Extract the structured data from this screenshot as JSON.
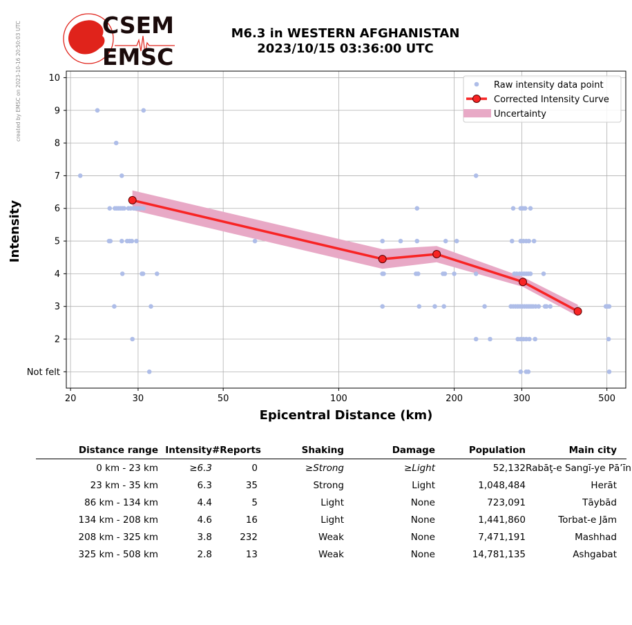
{
  "credit": "created by EMSC on 2023-10-16 20:50:03 UTC",
  "logo": {
    "line1": "CSEM",
    "line2": "EMSC",
    "color": "#e0231b"
  },
  "title": {
    "line1": "M6.3 in WESTERN AFGHANISTAN",
    "line2": "2023/10/15 03:36:00 UTC"
  },
  "chart_data": {
    "type": "scatter",
    "xlabel": "Epicentral Distance (km)",
    "ylabel": "Intensity",
    "xscale": "log",
    "xlim": [
      19.5,
      560
    ],
    "ylim": [
      0.5,
      10.2
    ],
    "xticks": [
      20,
      30,
      50,
      100,
      200,
      300,
      500
    ],
    "yticks": [
      1,
      2,
      3,
      4,
      5,
      6,
      7,
      8,
      9,
      10
    ],
    "ytick_labels": [
      "Not felt",
      "2",
      "3",
      "4",
      "5",
      "6",
      "7",
      "8",
      "9",
      "10"
    ],
    "grid": true,
    "legend_position": "top-right",
    "legend": [
      "Raw intensity data point",
      "Corrected Intensity Curve",
      "Uncertainty"
    ],
    "colors": {
      "raw": "#aebde8",
      "curve": "#f82424",
      "band": "#e8a9c6",
      "marker_edge": "#5a0000"
    },
    "corrected_curve": {
      "x": [
        29,
        130,
        180,
        302,
        420
      ],
      "y": [
        6.25,
        4.45,
        4.6,
        3.75,
        2.85
      ],
      "upper": [
        6.55,
        4.75,
        4.85,
        3.9,
        3.05
      ],
      "lower": [
        5.95,
        4.15,
        4.35,
        3.6,
        2.7
      ]
    },
    "raw_points": [
      [
        21.2,
        7
      ],
      [
        23.5,
        9
      ],
      [
        26.3,
        8
      ],
      [
        27.2,
        7
      ],
      [
        31,
        9
      ],
      [
        25.3,
        6
      ],
      [
        26.1,
        6
      ],
      [
        26.4,
        6
      ],
      [
        26.7,
        6
      ],
      [
        27,
        6
      ],
      [
        27.3,
        6
      ],
      [
        27.6,
        6
      ],
      [
        28.3,
        6
      ],
      [
        28.7,
        6
      ],
      [
        29.2,
        6
      ],
      [
        29.6,
        6
      ],
      [
        30,
        6
      ],
      [
        30.4,
        6
      ],
      [
        31,
        6
      ],
      [
        25.2,
        5
      ],
      [
        25.4,
        5
      ],
      [
        27.2,
        5
      ],
      [
        28.1,
        5
      ],
      [
        28.5,
        5
      ],
      [
        28.9,
        5
      ],
      [
        29.7,
        5
      ],
      [
        27.3,
        4
      ],
      [
        30.7,
        4
      ],
      [
        30.9,
        4
      ],
      [
        33.6,
        4
      ],
      [
        26,
        3
      ],
      [
        32.4,
        3
      ],
      [
        29,
        2
      ],
      [
        32.1,
        1
      ],
      [
        60.5,
        5
      ],
      [
        130,
        5
      ],
      [
        145,
        5
      ],
      [
        160,
        5
      ],
      [
        190,
        5
      ],
      [
        203,
        5
      ],
      [
        130,
        4
      ],
      [
        131,
        4
      ],
      [
        159,
        4
      ],
      [
        161,
        4
      ],
      [
        187,
        4
      ],
      [
        189,
        4
      ],
      [
        200,
        4
      ],
      [
        130,
        3
      ],
      [
        162,
        3
      ],
      [
        178,
        3
      ],
      [
        188,
        3
      ],
      [
        160,
        6
      ],
      [
        228,
        7
      ],
      [
        228,
        4
      ],
      [
        228,
        2
      ],
      [
        240,
        3
      ],
      [
        248,
        2
      ],
      [
        285,
        6
      ],
      [
        298,
        6
      ],
      [
        302,
        6
      ],
      [
        306,
        6
      ],
      [
        316,
        6
      ],
      [
        283,
        5
      ],
      [
        298,
        5
      ],
      [
        303,
        5
      ],
      [
        308,
        5
      ],
      [
        313,
        5
      ],
      [
        323,
        5
      ],
      [
        287,
        4
      ],
      [
        291,
        4
      ],
      [
        296,
        4
      ],
      [
        300,
        4
      ],
      [
        304,
        4
      ],
      [
        308,
        4
      ],
      [
        312,
        4
      ],
      [
        316,
        4
      ],
      [
        342,
        4
      ],
      [
        281,
        3
      ],
      [
        285,
        3
      ],
      [
        289,
        3
      ],
      [
        293,
        3
      ],
      [
        297,
        3
      ],
      [
        301,
        3
      ],
      [
        305,
        3
      ],
      [
        309,
        3
      ],
      [
        313,
        3
      ],
      [
        317,
        3
      ],
      [
        321,
        3
      ],
      [
        326,
        3
      ],
      [
        332,
        3
      ],
      [
        345,
        3
      ],
      [
        348,
        3
      ],
      [
        356,
        3
      ],
      [
        293,
        2
      ],
      [
        298,
        2
      ],
      [
        303,
        2
      ],
      [
        308,
        2
      ],
      [
        314,
        2
      ],
      [
        325,
        2
      ],
      [
        298,
        1
      ],
      [
        308,
        1
      ],
      [
        312,
        1
      ],
      [
        497,
        3
      ],
      [
        502,
        3
      ],
      [
        507,
        3
      ],
      [
        505,
        2
      ],
      [
        507,
        1
      ]
    ]
  },
  "table": {
    "headers": [
      "Distance range",
      "Intensity",
      "#Reports",
      "Shaking",
      "Damage",
      "Population",
      "Main city"
    ],
    "rows": [
      {
        "range": "0 km -   23 km",
        "intensity": "≥6.3",
        "reports": "0",
        "shaking": "≥Strong",
        "damage": "≥Light",
        "population": "52,132",
        "city": "Rabāţ-e Sangī-ye Pā’īn"
      },
      {
        "range": "23 km -   35 km",
        "intensity": "6.3",
        "reports": "35",
        "shaking": "Strong",
        "damage": "Light",
        "population": "1,048,484",
        "city": "Herāt"
      },
      {
        "range": "86 km -  134 km",
        "intensity": "4.4",
        "reports": "5",
        "shaking": "Light",
        "damage": "None",
        "population": "723,091",
        "city": "Tāybād"
      },
      {
        "range": "134 km -  208 km",
        "intensity": "4.6",
        "reports": "16",
        "shaking": "Light",
        "damage": "None",
        "population": "1,441,860",
        "city": "Torbat-e Jām"
      },
      {
        "range": "208 km -  325 km",
        "intensity": "3.8",
        "reports": "232",
        "shaking": "Weak",
        "damage": "None",
        "population": "7,471,191",
        "city": "Mashhad"
      },
      {
        "range": "325 km -  508 km",
        "intensity": "2.8",
        "reports": "13",
        "shaking": "Weak",
        "damage": "None",
        "population": "14,781,135",
        "city": "Ashgabat"
      }
    ]
  }
}
